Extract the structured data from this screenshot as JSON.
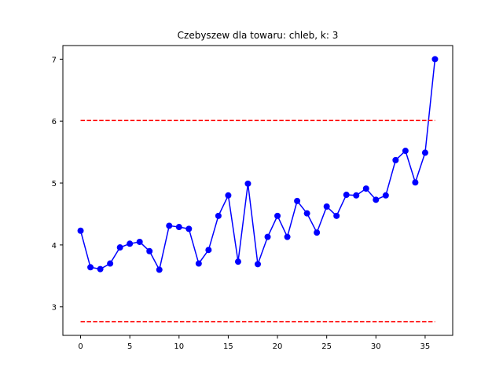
{
  "chart_data": {
    "type": "line",
    "title": "Czebyszew dla towaru: chleb, k: 3",
    "xlabel": "",
    "ylabel": "",
    "xlim": [
      -1.8,
      37.8
    ],
    "ylim": [
      2.54,
      7.22
    ],
    "xticks": [
      0,
      5,
      10,
      15,
      20,
      25,
      30,
      35
    ],
    "yticks": [
      3,
      4,
      5,
      6,
      7
    ],
    "grid": false,
    "legend": "none",
    "series": [
      {
        "color": "#0000ff",
        "marker": "circle",
        "x": [
          0,
          1,
          2,
          3,
          4,
          5,
          6,
          7,
          8,
          9,
          10,
          11,
          12,
          13,
          14,
          15,
          16,
          17,
          18,
          19,
          20,
          21,
          22,
          23,
          24,
          25,
          26,
          27,
          28,
          29,
          30,
          31,
          32,
          33,
          34,
          35,
          36
        ],
        "values": [
          4.23,
          3.64,
          3.61,
          3.7,
          3.96,
          4.02,
          4.05,
          3.9,
          3.6,
          4.31,
          4.29,
          4.26,
          3.7,
          3.92,
          4.47,
          4.8,
          3.73,
          4.99,
          3.69,
          4.13,
          4.47,
          4.13,
          4.71,
          4.51,
          4.2,
          4.62,
          4.47,
          4.81,
          4.8,
          4.91,
          4.73,
          4.8,
          5.37,
          5.52,
          5.01,
          5.49,
          7.0
        ]
      },
      {
        "color": "#ff0000",
        "style": "dashed",
        "x": [
          0,
          36
        ],
        "values": [
          6.01,
          6.01
        ]
      },
      {
        "color": "#ff0000",
        "style": "dashed",
        "x": [
          0,
          36
        ],
        "values": [
          2.76,
          2.76
        ]
      }
    ]
  }
}
